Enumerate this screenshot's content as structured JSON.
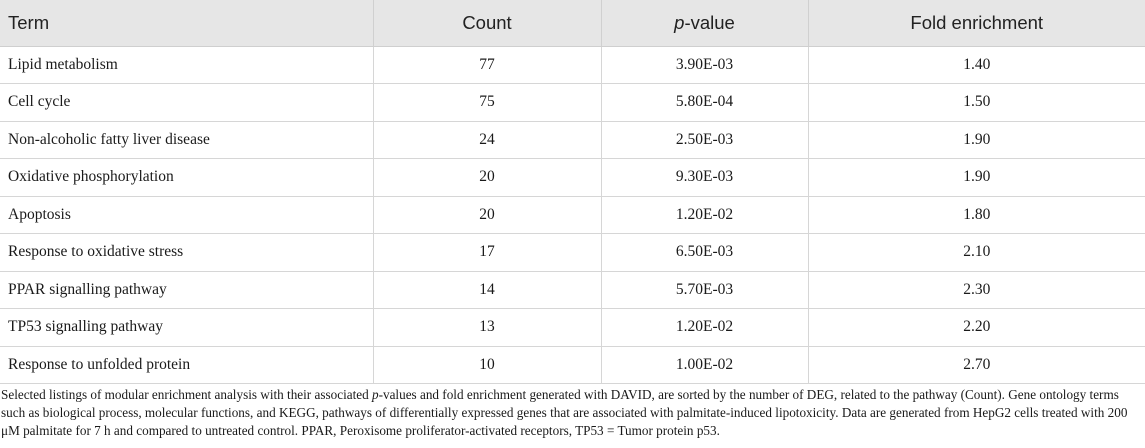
{
  "table": {
    "headers": {
      "term": "Term",
      "count": "Count",
      "pvalue_italic": "p",
      "pvalue_rest": "-value",
      "fold": "Fold enrichment"
    },
    "rows": [
      {
        "term": "Lipid metabolism",
        "count": "77",
        "pvalue": "3.90E-03",
        "fold": "1.40"
      },
      {
        "term": "Cell cycle",
        "count": "75",
        "pvalue": "5.80E-04",
        "fold": "1.50"
      },
      {
        "term": "Non-alcoholic fatty liver disease",
        "count": "24",
        "pvalue": "2.50E-03",
        "fold": "1.90"
      },
      {
        "term": "Oxidative phosphorylation",
        "count": "20",
        "pvalue": "9.30E-03",
        "fold": "1.90"
      },
      {
        "term": "Apoptosis",
        "count": "20",
        "pvalue": "1.20E-02",
        "fold": "1.80"
      },
      {
        "term": "Response to oxidative stress",
        "count": "17",
        "pvalue": "6.50E-03",
        "fold": "2.10"
      },
      {
        "term": "PPAR signalling pathway",
        "count": "14",
        "pvalue": "5.70E-03",
        "fold": "2.30"
      },
      {
        "term": "TP53 signalling pathway",
        "count": "13",
        "pvalue": "1.20E-02",
        "fold": "2.20"
      },
      {
        "term": "Response to unfolded protein",
        "count": "10",
        "pvalue": "1.00E-02",
        "fold": "2.70"
      }
    ]
  },
  "footnote": {
    "part1": "Selected listings of modular enrichment analysis with their associated ",
    "italic": "p",
    "part2": "-values and fold enrichment generated with DAVID, are sorted by the number of DEG, related to the pathway (Count). Gene ontology terms such as biological process, molecular functions, and KEGG, pathways of differentially expressed genes that are associated with palmitate-induced lipotoxicity. Data are generated from HepG2 cells treated with 200 μM palmitate for 7 h and compared to untreated control. PPAR, Peroxisome proliferator-activated receptors, TP53 = Tumor protein p53."
  }
}
